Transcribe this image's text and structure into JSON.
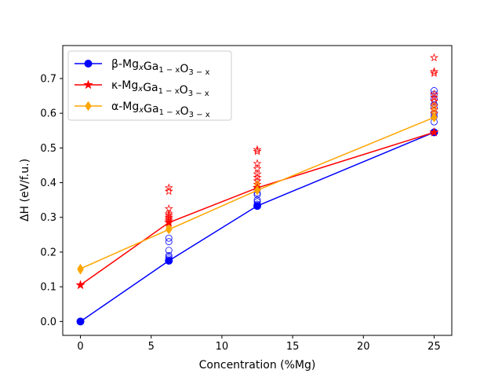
{
  "chart_data": {
    "type": "scatter",
    "title": "",
    "xlabel": "Concentration (%Mg)",
    "ylabel": "ΔH (eV/f.u.)",
    "xlim": [
      -1.25,
      26.25
    ],
    "ylim": [
      -0.04,
      0.795
    ],
    "xticks": [
      0,
      5,
      10,
      15,
      20,
      25
    ],
    "yticks": [
      0.0,
      0.1,
      0.2,
      0.3,
      0.4,
      0.5,
      0.6,
      0.7
    ],
    "xtick_labels": [
      "0",
      "5",
      "10",
      "15",
      "20",
      "25"
    ],
    "ytick_labels": [
      "0.0",
      "0.1",
      "0.2",
      "0.3",
      "0.4",
      "0.5",
      "0.6",
      "0.7"
    ],
    "grid": false,
    "legend_position": "top-left",
    "series": [
      {
        "name": "β-Mg_xGa_{1-x}O_{3-x}",
        "legend_parts": {
          "greek": "β",
          "mg": "Mg",
          "x": "x",
          "ga": "Ga",
          "ga_sub": "1 − x",
          "o": "O",
          "o_sub": "3 − x"
        },
        "color": "#0000ff",
        "marker": "circle",
        "line": {
          "x": [
            0,
            6.25,
            12.5,
            25
          ],
          "y": [
            0.0,
            0.175,
            0.333,
            0.545
          ]
        },
        "scatter": {
          "x": [
            6.25,
            6.25,
            6.25,
            6.25,
            6.25,
            6.25,
            12.5,
            12.5,
            12.5,
            12.5,
            12.5,
            12.5,
            25,
            25,
            25,
            25,
            25,
            25,
            25,
            25
          ],
          "y": [
            0.18,
            0.185,
            0.19,
            0.205,
            0.23,
            0.24,
            0.338,
            0.345,
            0.35,
            0.365,
            0.37,
            0.38,
            0.575,
            0.59,
            0.6,
            0.615,
            0.625,
            0.64,
            0.655,
            0.665
          ]
        }
      },
      {
        "name": "κ-Mg_xGa_{1-x}O_{3-x}",
        "legend_parts": {
          "greek": "κ",
          "mg": "Mg",
          "x": "x",
          "ga": "Ga",
          "ga_sub": "1 − x",
          "o": "O",
          "o_sub": "3 − x"
        },
        "color": "#ff0000",
        "marker": "star",
        "line": {
          "x": [
            0,
            6.25,
            12.5,
            25
          ],
          "y": [
            0.105,
            0.285,
            0.385,
            0.545
          ]
        },
        "scatter": {
          "x": [
            6.25,
            6.25,
            6.25,
            6.25,
            6.25,
            6.25,
            6.25,
            6.25,
            12.5,
            12.5,
            12.5,
            12.5,
            12.5,
            12.5,
            12.5,
            12.5,
            25,
            25,
            25,
            25,
            25,
            25,
            25,
            25,
            25
          ],
          "y": [
            0.29,
            0.295,
            0.3,
            0.305,
            0.31,
            0.325,
            0.375,
            0.385,
            0.395,
            0.405,
            0.415,
            0.425,
            0.44,
            0.455,
            0.49,
            0.495,
            0.6,
            0.61,
            0.62,
            0.635,
            0.645,
            0.655,
            0.715,
            0.72,
            0.76
          ]
        }
      },
      {
        "name": "α-Mg_xGa_{1-x}O_{3-x}",
        "legend_parts": {
          "greek": "α",
          "mg": "Mg",
          "x": "x",
          "ga": "Ga",
          "ga_sub": "1 − x",
          "o": "O",
          "o_sub": "3 − x"
        },
        "color": "#ffa500",
        "marker": "diamond",
        "line": {
          "x": [
            0,
            6.25,
            12.5,
            25
          ],
          "y": [
            0.152,
            0.265,
            0.378,
            0.588
          ]
        },
        "scatter": {
          "x": [
            0,
            6.25,
            6.25,
            12.5,
            12.5,
            12.5,
            25,
            25,
            25
          ],
          "y": [
            0.148,
            0.27,
            0.275,
            0.385,
            0.39,
            0.395,
            0.6,
            0.61,
            0.62
          ]
        }
      }
    ]
  }
}
